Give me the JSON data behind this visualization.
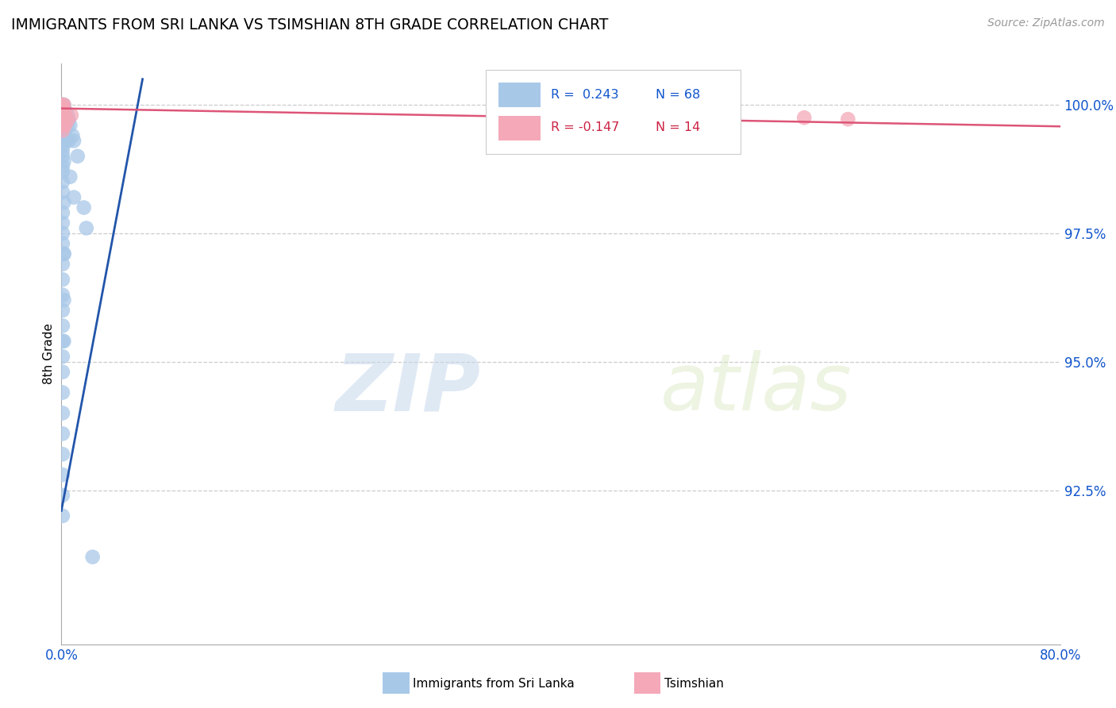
{
  "title": "IMMIGRANTS FROM SRI LANKA VS TSIMSHIAN 8TH GRADE CORRELATION CHART",
  "source": "Source: ZipAtlas.com",
  "ylabel": "8th Grade",
  "xlim": [
    0.0,
    0.8
  ],
  "ylim": [
    0.895,
    1.008
  ],
  "xticks": [
    0.0,
    0.1,
    0.2,
    0.3,
    0.4,
    0.5,
    0.6,
    0.7,
    0.8
  ],
  "xtick_labels": [
    "0.0%",
    "",
    "",
    "",
    "",
    "",
    "",
    "",
    "80.0%"
  ],
  "ytick_vals": [
    0.925,
    0.95,
    0.975,
    1.0
  ],
  "ytick_labels": [
    "92.5%",
    "95.0%",
    "97.5%",
    "100.0%"
  ],
  "legend_r1": "R =  0.243",
  "legend_n1": "N = 68",
  "legend_r2": "R = -0.147",
  "legend_n2": "N = 14",
  "blue_color": "#a8c8e8",
  "pink_color": "#f4a8b8",
  "blue_line_color": "#2255aa",
  "pink_line_color": "#dd5577",
  "blue_r_color": "#1155cc",
  "pink_r_color": "#cc2244",
  "watermark_zip": "ZIP",
  "watermark_atlas": "atlas",
  "blue_dots": [
    [
      0.001,
      1.0
    ],
    [
      0.001,
      1.0
    ],
    [
      0.002,
      1.0
    ],
    [
      0.001,
      0.9995
    ],
    [
      0.001,
      0.999
    ],
    [
      0.001,
      0.999
    ],
    [
      0.001,
      0.998
    ],
    [
      0.001,
      0.998
    ],
    [
      0.002,
      0.998
    ],
    [
      0.001,
      0.997
    ],
    [
      0.001,
      0.997
    ],
    [
      0.002,
      0.997
    ],
    [
      0.001,
      0.996
    ],
    [
      0.002,
      0.996
    ],
    [
      0.001,
      0.995
    ],
    [
      0.002,
      0.995
    ],
    [
      0.001,
      0.994
    ],
    [
      0.002,
      0.994
    ],
    [
      0.001,
      0.993
    ],
    [
      0.001,
      0.992
    ],
    [
      0.001,
      0.991
    ],
    [
      0.001,
      0.99
    ],
    [
      0.002,
      0.989
    ],
    [
      0.001,
      0.988
    ],
    [
      0.001,
      0.987
    ],
    [
      0.001,
      0.985
    ],
    [
      0.001,
      0.983
    ],
    [
      0.002,
      0.981
    ],
    [
      0.001,
      0.979
    ],
    [
      0.001,
      0.977
    ],
    [
      0.001,
      0.975
    ],
    [
      0.001,
      0.973
    ],
    [
      0.002,
      0.971
    ],
    [
      0.001,
      0.969
    ],
    [
      0.001,
      0.966
    ],
    [
      0.001,
      0.963
    ],
    [
      0.001,
      0.96
    ],
    [
      0.001,
      0.957
    ],
    [
      0.001,
      0.954
    ],
    [
      0.001,
      0.951
    ],
    [
      0.001,
      0.948
    ],
    [
      0.001,
      0.944
    ],
    [
      0.001,
      0.94
    ],
    [
      0.001,
      0.936
    ],
    [
      0.001,
      0.932
    ],
    [
      0.001,
      0.928
    ],
    [
      0.001,
      0.924
    ],
    [
      0.001,
      0.92
    ],
    [
      0.003,
      0.999
    ],
    [
      0.003,
      0.997
    ],
    [
      0.003,
      0.995
    ],
    [
      0.003,
      0.993
    ],
    [
      0.005,
      0.998
    ],
    [
      0.005,
      0.996
    ],
    [
      0.006,
      0.997
    ],
    [
      0.006,
      0.993
    ],
    [
      0.007,
      0.996
    ],
    [
      0.009,
      0.994
    ],
    [
      0.01,
      0.993
    ],
    [
      0.013,
      0.99
    ],
    [
      0.018,
      0.98
    ],
    [
      0.02,
      0.976
    ],
    [
      0.007,
      0.986
    ],
    [
      0.01,
      0.982
    ],
    [
      0.002,
      0.971
    ],
    [
      0.002,
      0.962
    ],
    [
      0.002,
      0.954
    ],
    [
      0.025,
      0.912
    ]
  ],
  "pink_dots": [
    [
      0.001,
      1.0
    ],
    [
      0.002,
      1.0
    ],
    [
      0.001,
      0.9995
    ],
    [
      0.001,
      0.999
    ],
    [
      0.001,
      0.998
    ],
    [
      0.001,
      0.997
    ],
    [
      0.001,
      0.996
    ],
    [
      0.001,
      0.995
    ],
    [
      0.003,
      0.998
    ],
    [
      0.003,
      0.996
    ],
    [
      0.005,
      0.997
    ],
    [
      0.008,
      0.998
    ],
    [
      0.595,
      0.9975
    ],
    [
      0.63,
      0.9972
    ]
  ],
  "blue_trend_x": [
    0.0,
    0.065
  ],
  "blue_trend_y": [
    0.921,
    1.005
  ],
  "pink_trend_x": [
    0.0,
    0.8
  ],
  "pink_trend_y": [
    0.9993,
    0.9958
  ]
}
